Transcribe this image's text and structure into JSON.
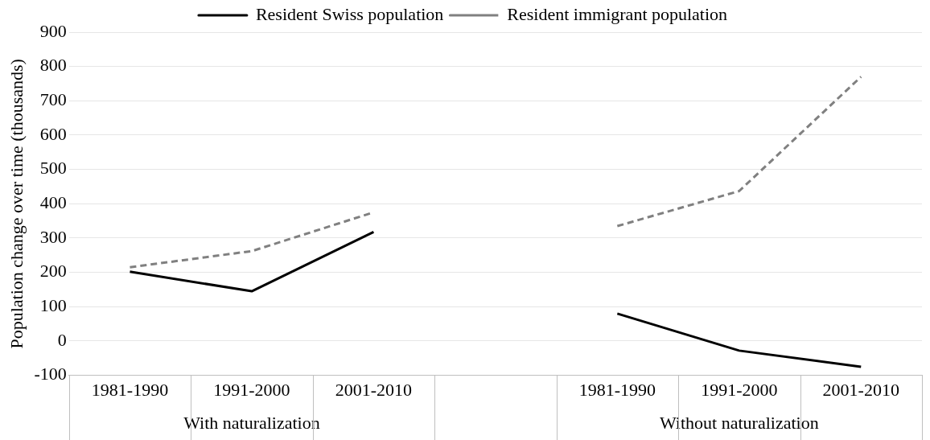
{
  "chart_data": {
    "type": "line",
    "ylabel": "Population change over time (thousands)",
    "categories": [
      "1981-1990",
      "1991-2000",
      "2001-2010",
      null,
      "1981-1990",
      "1991-2000",
      "2001-2010"
    ],
    "series": [
      {
        "name": "Resident Swiss population",
        "color": "#000000",
        "line_style": "solid",
        "values": [
          202,
          145,
          318,
          null,
          80,
          -28,
          -75
        ]
      },
      {
        "name": "Resident immigrant population",
        "color": "#808080",
        "line_style": "dashed",
        "values": [
          215,
          262,
          375,
          null,
          335,
          437,
          770
        ]
      }
    ],
    "ylim": [
      -100,
      900
    ],
    "yticks": [
      -100,
      0,
      100,
      200,
      300,
      400,
      500,
      600,
      700,
      800,
      900
    ],
    "grid": "y",
    "legend": "top",
    "marker": "none",
    "annotations": [
      "With naturalization",
      "Without naturalization"
    ]
  }
}
